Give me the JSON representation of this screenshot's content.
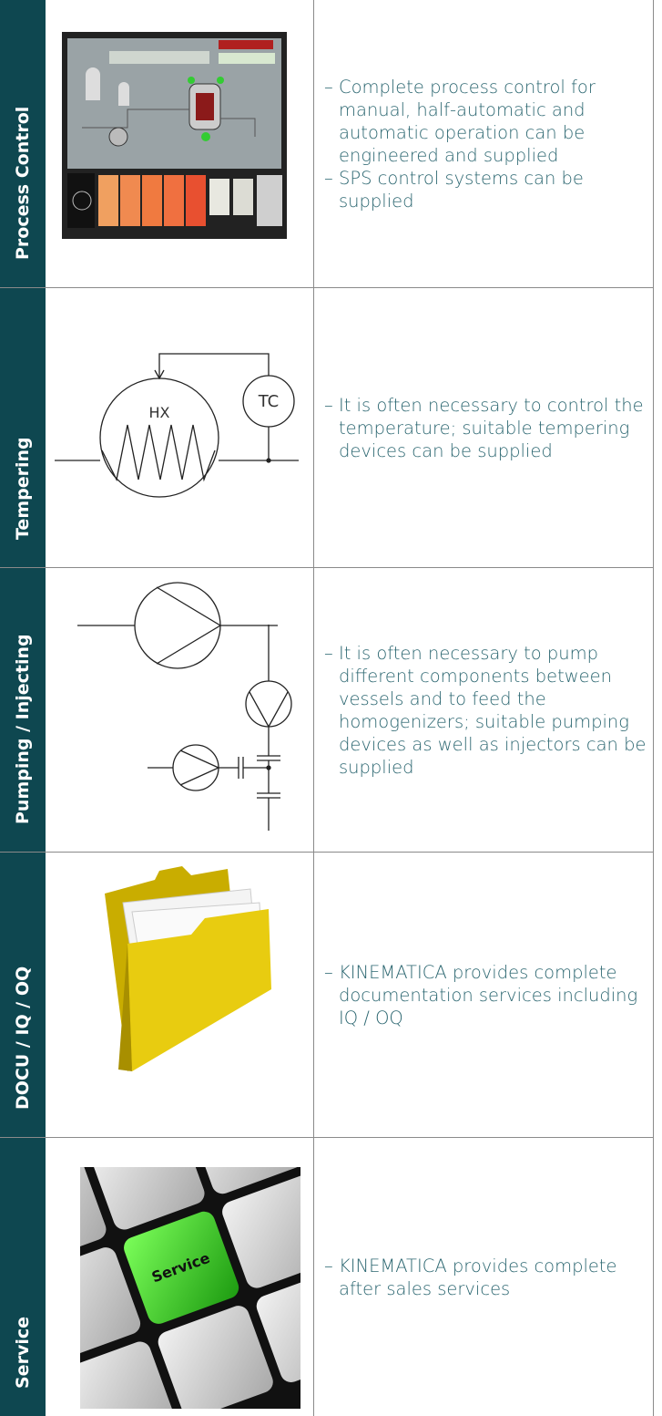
{
  "rows": [
    {
      "label": "Process Control",
      "items": [
        "Complete process control for manual, half-automatic and automatic operation can be engineered and supplied",
        "SPS control systems can be supplied"
      ]
    },
    {
      "label": "Tempering",
      "items": [
        "It is often necessary to control the temperature; suitable tempering devices can be supplied"
      ],
      "diagram_labels": [
        "HX",
        "TC"
      ]
    },
    {
      "label": "Pumping / Injecting",
      "items": [
        "It is often necessary to pump different components between vessels and to feed the homogenizers; suitable pumping devices as well as injectors can be supplied"
      ]
    },
    {
      "label": "DOCU / IQ / OQ",
      "items": [
        "KINEMATICA provides complete documentation services including IQ / OQ"
      ]
    },
    {
      "label": "Service",
      "items": [
        "KINEMATICA provides complete after sales services"
      ],
      "key_label": "Service"
    }
  ]
}
